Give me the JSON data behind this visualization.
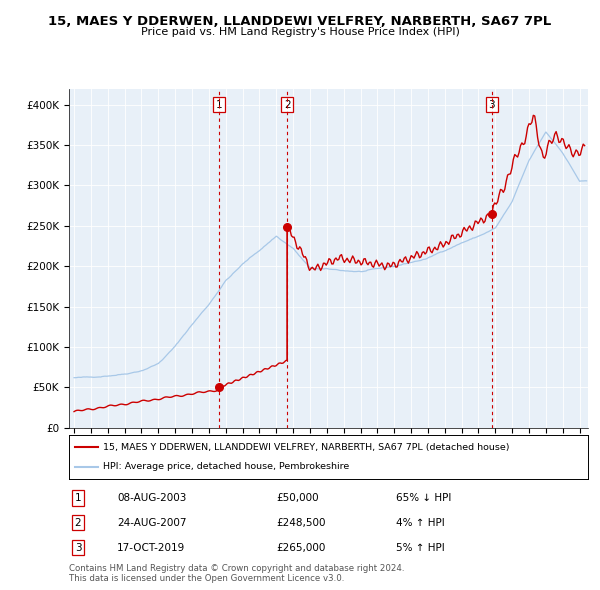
{
  "title": "15, MAES Y DDERWEN, LLANDDEWI VELFREY, NARBERTH, SA67 7PL",
  "subtitle": "Price paid vs. HM Land Registry's House Price Index (HPI)",
  "legend_line1": "15, MAES Y DDERWEN, LLANDDEWI VELFREY, NARBERTH, SA67 7PL (detached house)",
  "legend_line2": "HPI: Average price, detached house, Pembrokeshire",
  "footer": "Contains HM Land Registry data © Crown copyright and database right 2024.\nThis data is licensed under the Open Government Licence v3.0.",
  "hpi_color": "#a8c8e8",
  "price_color": "#cc0000",
  "dot_color": "#cc0000",
  "plot_bg": "#e8f0f8",
  "sale_events": [
    {
      "num": 1,
      "date": "08-AUG-2003",
      "price": 50000,
      "price_str": "£50,000",
      "pct": "65% ↓ HPI",
      "year": 2003.6
    },
    {
      "num": 2,
      "date": "24-AUG-2007",
      "price": 248500,
      "price_str": "£248,500",
      "pct": "4% ↑ HPI",
      "year": 2007.65
    },
    {
      "num": 3,
      "date": "17-OCT-2019",
      "price": 265000,
      "price_str": "£265,000",
      "pct": "5% ↑ HPI",
      "year": 2019.8
    }
  ],
  "ylim": [
    0,
    420000
  ],
  "xlim_start": 1994.7,
  "xlim_end": 2025.5,
  "yticks": [
    0,
    50000,
    100000,
    150000,
    200000,
    250000,
    300000,
    350000,
    400000
  ],
  "ytick_labels": [
    "£0",
    "£50K",
    "£100K",
    "£150K",
    "£200K",
    "£250K",
    "£300K",
    "£350K",
    "£400K"
  ],
  "xticks": [
    1995,
    1996,
    1997,
    1998,
    1999,
    2000,
    2001,
    2002,
    2003,
    2004,
    2005,
    2006,
    2007,
    2008,
    2009,
    2010,
    2011,
    2012,
    2013,
    2014,
    2015,
    2016,
    2017,
    2018,
    2019,
    2020,
    2021,
    2022,
    2023,
    2024,
    2025
  ]
}
